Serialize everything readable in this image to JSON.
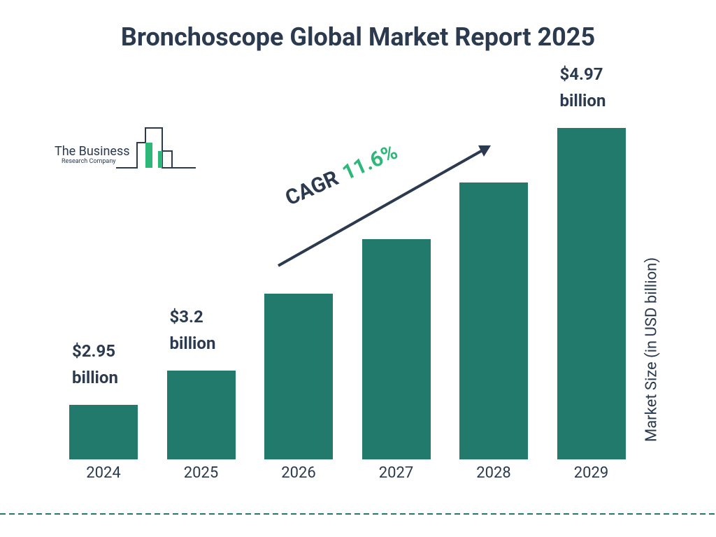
{
  "logo": {
    "line1": "The Business",
    "line2": "Research Company"
  },
  "chart_data": {
    "type": "bar",
    "title": "Bronchoscope Global Market Report 2025",
    "y_label": "Market Size (in USD billion)",
    "categories": [
      "2024",
      "2025",
      "2026",
      "2027",
      "2028",
      "2029"
    ],
    "values": [
      2.95,
      3.2,
      3.76,
      4.16,
      4.57,
      4.97
    ],
    "value_labels": [
      "$2.95 billion",
      "$3.2 billion",
      null,
      null,
      null,
      "$4.97 billion"
    ],
    "color": "#217a6b",
    "ylim": [
      2.55,
      5.0
    ],
    "annotations": [
      "CAGR",
      "11.6%"
    ]
  }
}
